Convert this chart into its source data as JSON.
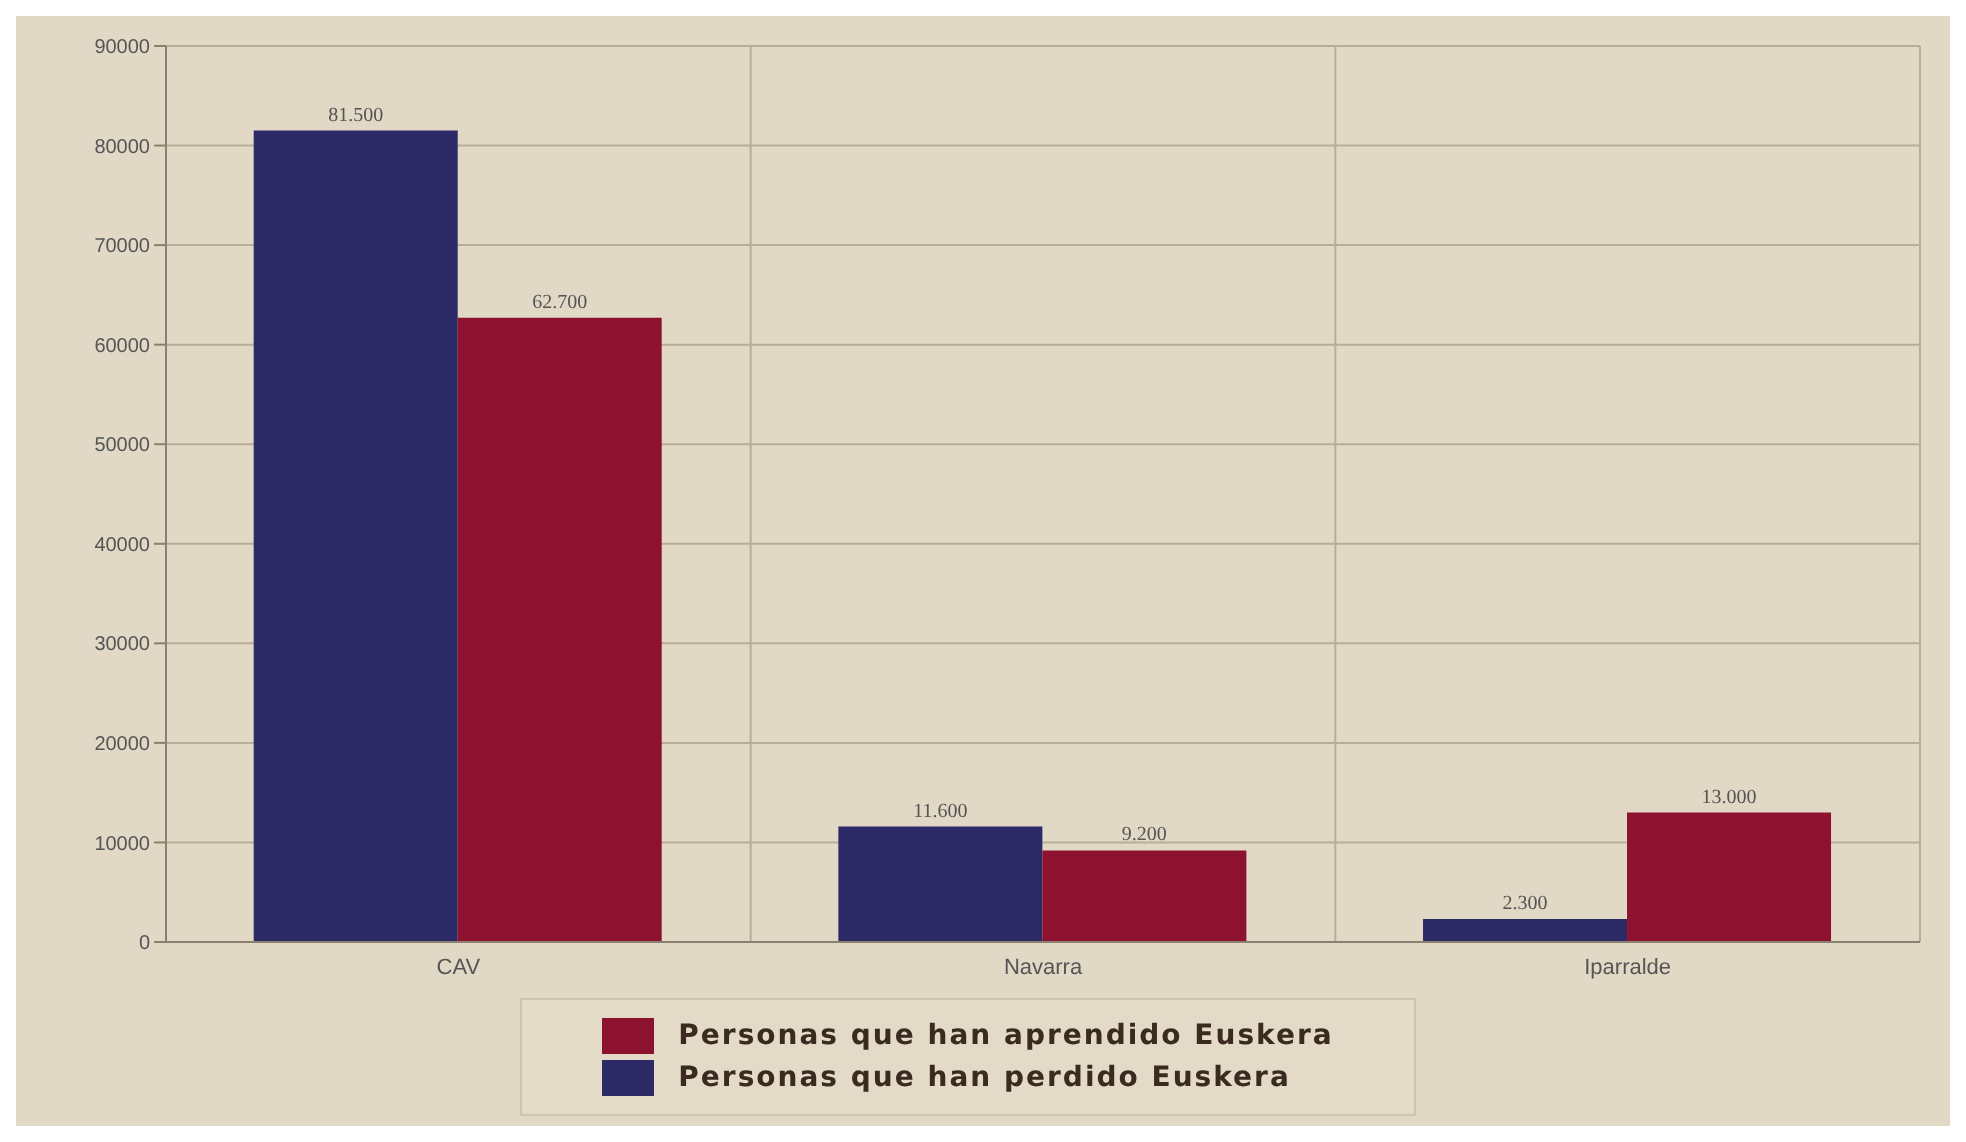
{
  "chart_data": {
    "type": "bar",
    "categories": [
      "CAV",
      "Navarra",
      "Iparralde"
    ],
    "series": [
      {
        "name": "Personas que han perdido Euskera",
        "color": "#2b2a66",
        "values": [
          81500,
          11600,
          2300
        ],
        "value_labels": [
          "81.500",
          "11.600",
          "2.300"
        ]
      },
      {
        "name": "Personas que han aprendido Euskera",
        "color": "#8c1230",
        "values": [
          62700,
          9200,
          13000
        ],
        "value_labels": [
          "62.700",
          "9.200",
          "13.000"
        ]
      }
    ],
    "ylim": [
      0,
      90000
    ],
    "yticks": [
      0,
      10000,
      20000,
      30000,
      40000,
      50000,
      60000,
      70000,
      80000,
      90000
    ],
    "grid": true,
    "legend": "bottom"
  }
}
